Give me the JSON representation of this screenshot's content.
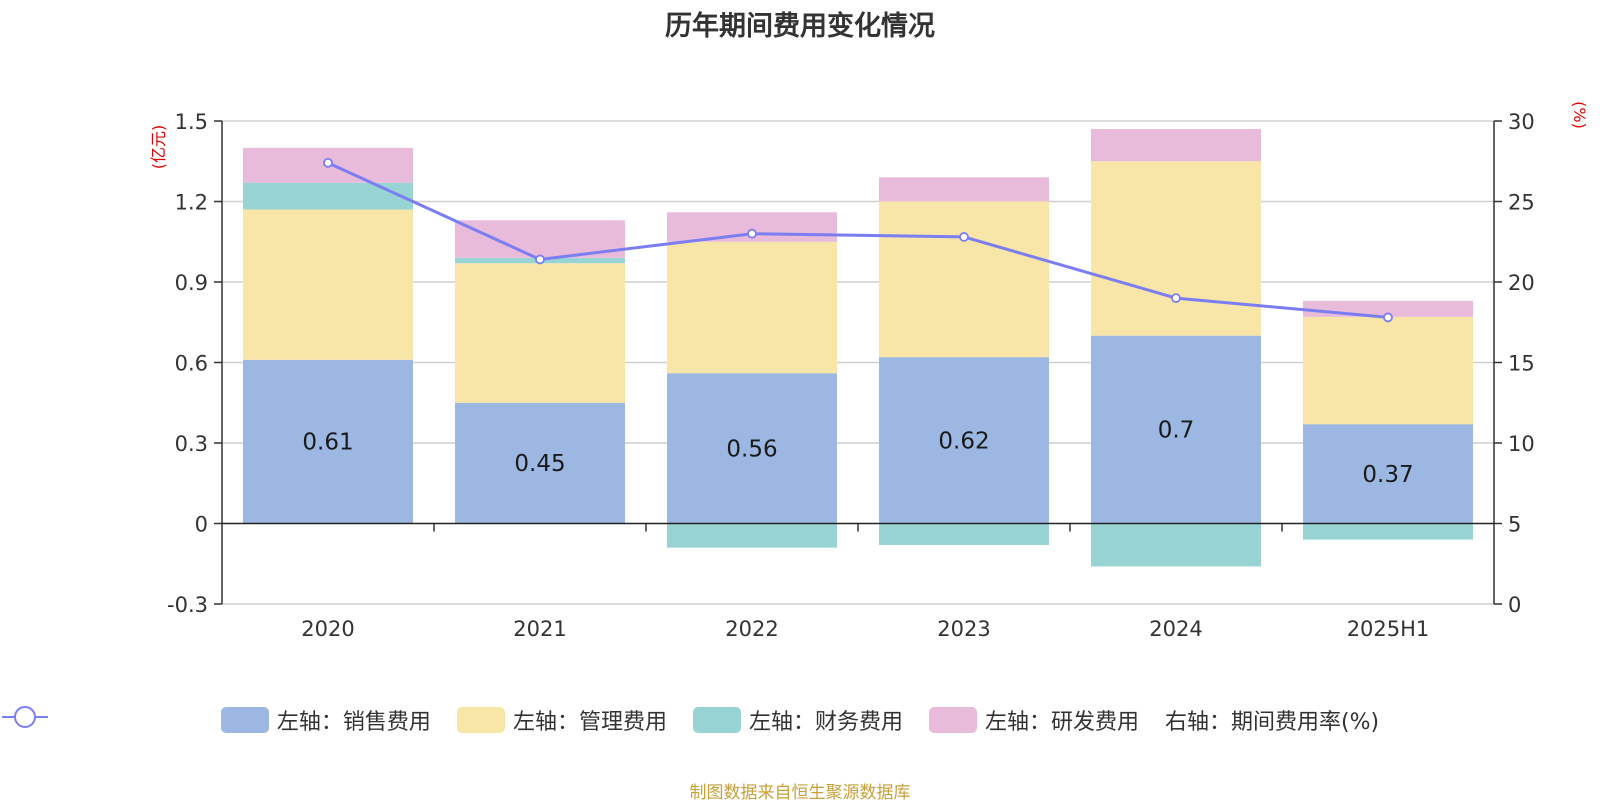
{
  "title": "历年期间费用变化情况",
  "left_unit": "(亿元)",
  "right_unit": "(%)",
  "source": "制图数据来自恒生聚源数据库",
  "colors": {
    "sales": "#9cb7e2",
    "admin": "#f8e6a8",
    "finance": "#98d4d4",
    "rd": "#e8bbdb",
    "rate": "#7b7ef2"
  },
  "chart_data": {
    "type": "bar",
    "categories": [
      "2020",
      "2021",
      "2022",
      "2023",
      "2024",
      "2025H1"
    ],
    "series": [
      {
        "key": "sales",
        "name": "左轴：销售费用",
        "axis": "left",
        "values": [
          0.61,
          0.45,
          0.56,
          0.62,
          0.7,
          0.37
        ],
        "data_labels": [
          "0.61",
          "0.45",
          "0.56",
          "0.62",
          "0.7",
          "0.37"
        ]
      },
      {
        "key": "admin",
        "name": "左轴：管理费用",
        "axis": "left",
        "values": [
          0.56,
          0.52,
          0.49,
          0.58,
          0.65,
          0.4
        ]
      },
      {
        "key": "finance",
        "name": "左轴：财务费用",
        "axis": "left",
        "values": [
          0.1,
          0.02,
          -0.09,
          -0.08,
          -0.16,
          -0.06
        ]
      },
      {
        "key": "rd",
        "name": "左轴：研发费用",
        "axis": "left",
        "values": [
          0.13,
          0.14,
          0.11,
          0.09,
          0.12,
          0.06
        ]
      },
      {
        "key": "rate",
        "name": "右轴：期间费用率(%)",
        "axis": "right",
        "type": "line",
        "values": [
          27.4,
          21.4,
          23.0,
          22.8,
          19.0,
          17.8
        ]
      }
    ],
    "y_left": {
      "min": -0.3,
      "max": 1.5,
      "ticks": [
        -0.3,
        0,
        0.3,
        0.6,
        0.9,
        1.2,
        1.5
      ],
      "tick_labels": [
        "-0.3",
        "0",
        "0.3",
        "0.6",
        "0.9",
        "1.2",
        "1.5"
      ]
    },
    "y_right": {
      "min": 0,
      "max": 30,
      "ticks": [
        0,
        5,
        10,
        15,
        20,
        25,
        30
      ],
      "tick_labels": [
        "0",
        "5",
        "10",
        "15",
        "20",
        "25",
        "30"
      ]
    },
    "grid": true,
    "legend_position": "bottom"
  }
}
